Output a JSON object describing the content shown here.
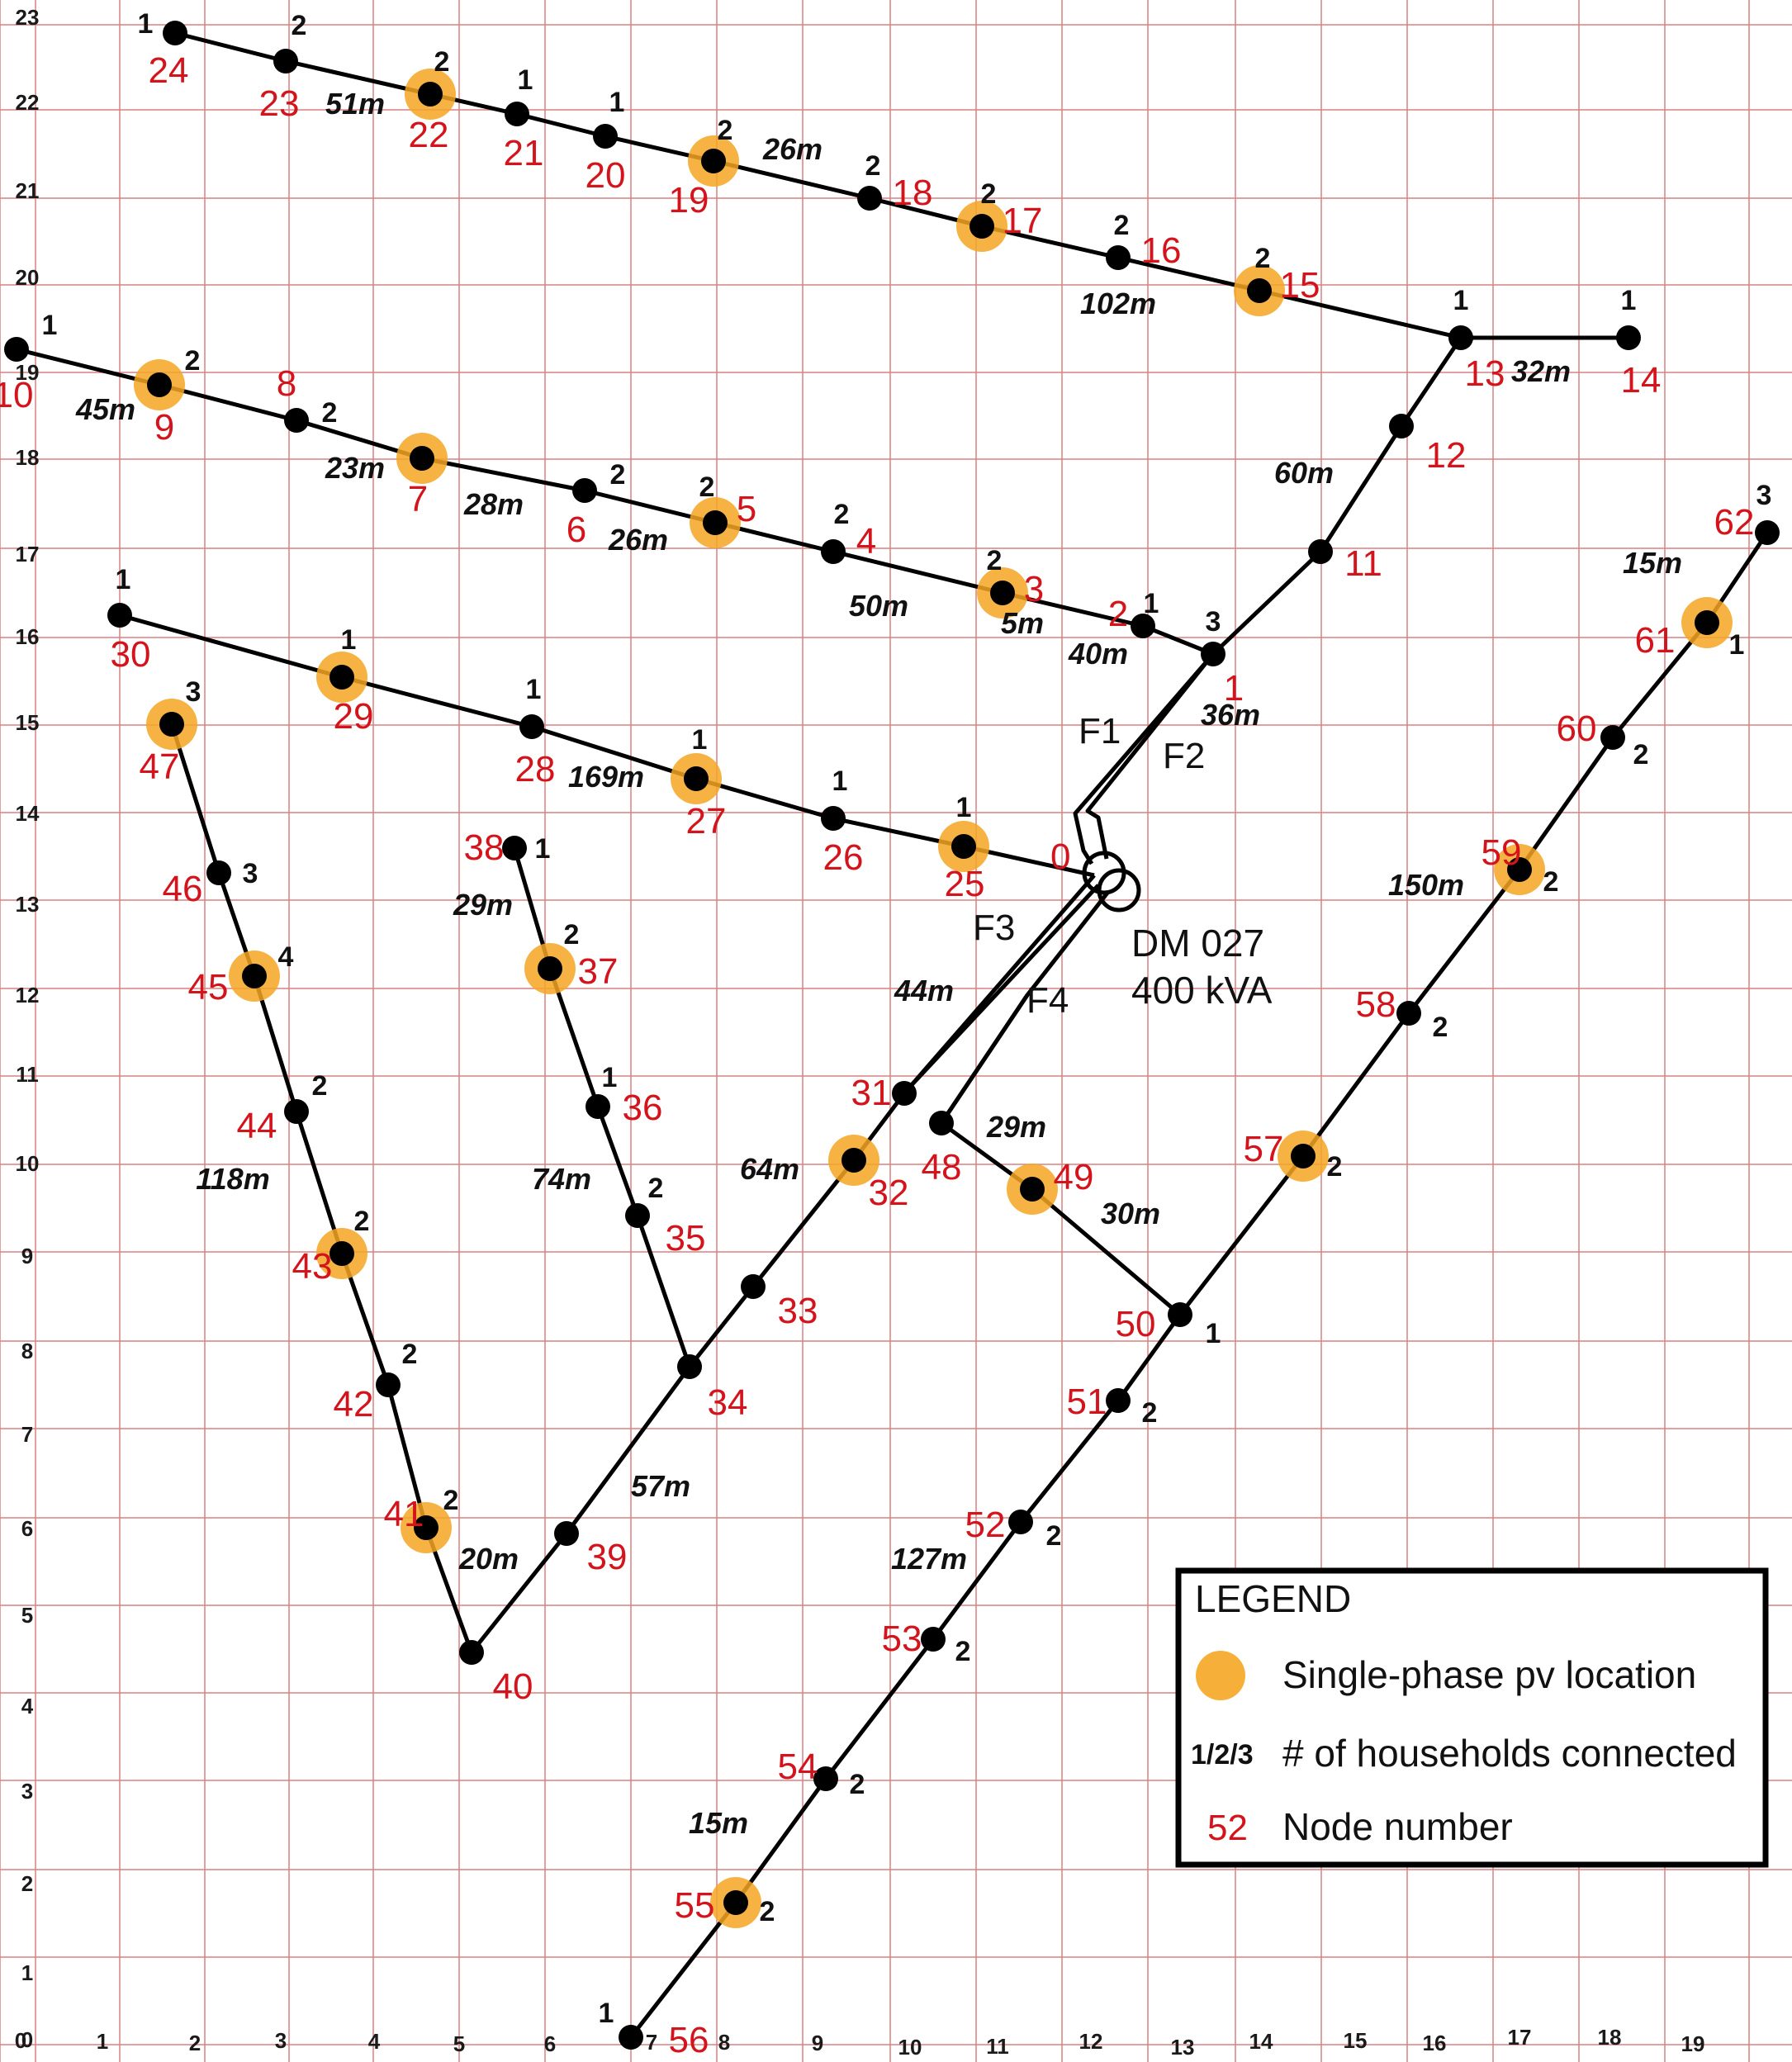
{
  "axes": {
    "x_ticks": [
      "0",
      "1",
      "2",
      "3",
      "4",
      "5",
      "6",
      "7",
      "8",
      "9",
      "10",
      "11",
      "12",
      "13",
      "14",
      "15",
      "16",
      "17",
      "18",
      "19"
    ],
    "y_ticks": [
      "23",
      "22",
      "21",
      "20",
      "19",
      "18",
      "17",
      "16",
      "15",
      "14",
      "13",
      "12",
      "11",
      "10",
      "9",
      "8",
      "7",
      "6",
      "5",
      "4",
      "3",
      "2",
      "1",
      "0"
    ]
  },
  "colors": {
    "grid": "#d98080",
    "line": "#000000",
    "node": "#000000",
    "pv_halo": "#f5a623",
    "node_number": "#d4141c"
  },
  "nodes": [
    {
      "id": "1",
      "hh": "3",
      "pv": false
    },
    {
      "id": "2",
      "hh": "1",
      "pv": false
    },
    {
      "id": "3",
      "hh": "2",
      "pv": true
    },
    {
      "id": "4",
      "hh": "2",
      "pv": false
    },
    {
      "id": "5",
      "hh": "2",
      "pv": true
    },
    {
      "id": "6",
      "hh": "2",
      "pv": false
    },
    {
      "id": "7",
      "hh": "",
      "pv": true
    },
    {
      "id": "8",
      "hh": "2",
      "pv": false
    },
    {
      "id": "9",
      "hh": "2",
      "pv": true
    },
    {
      "id": "10",
      "hh": "1",
      "pv": false
    },
    {
      "id": "11",
      "hh": "",
      "pv": false
    },
    {
      "id": "12",
      "hh": "",
      "pv": false
    },
    {
      "id": "13",
      "hh": "1",
      "pv": false
    },
    {
      "id": "14",
      "hh": "1",
      "pv": false
    },
    {
      "id": "15",
      "hh": "2",
      "pv": true
    },
    {
      "id": "16",
      "hh": "2",
      "pv": false
    },
    {
      "id": "17",
      "hh": "2",
      "pv": true
    },
    {
      "id": "18",
      "hh": "2",
      "pv": false
    },
    {
      "id": "19",
      "hh": "2",
      "pv": true
    },
    {
      "id": "20",
      "hh": "1",
      "pv": false
    },
    {
      "id": "21",
      "hh": "1",
      "pv": false
    },
    {
      "id": "22",
      "hh": "2",
      "pv": true
    },
    {
      "id": "23",
      "hh": "2",
      "pv": false
    },
    {
      "id": "24",
      "hh": "1",
      "pv": false
    },
    {
      "id": "25",
      "hh": "1",
      "pv": true
    },
    {
      "id": "26",
      "hh": "1",
      "pv": false
    },
    {
      "id": "27",
      "hh": "1",
      "pv": true
    },
    {
      "id": "28",
      "hh": "1",
      "pv": false
    },
    {
      "id": "29",
      "hh": "1",
      "pv": true
    },
    {
      "id": "30",
      "hh": "1",
      "pv": false
    },
    {
      "id": "31",
      "hh": "",
      "pv": false
    },
    {
      "id": "32",
      "hh": "",
      "pv": true
    },
    {
      "id": "33",
      "hh": "",
      "pv": false
    },
    {
      "id": "34",
      "hh": "",
      "pv": false
    },
    {
      "id": "35",
      "hh": "2",
      "pv": false
    },
    {
      "id": "36",
      "hh": "1",
      "pv": false
    },
    {
      "id": "37",
      "hh": "2",
      "pv": true
    },
    {
      "id": "38",
      "hh": "1",
      "pv": false
    },
    {
      "id": "39",
      "hh": "",
      "pv": false
    },
    {
      "id": "40",
      "hh": "",
      "pv": false
    },
    {
      "id": "41",
      "hh": "2",
      "pv": true
    },
    {
      "id": "42",
      "hh": "2",
      "pv": false
    },
    {
      "id": "43",
      "hh": "2",
      "pv": true
    },
    {
      "id": "44",
      "hh": "2",
      "pv": false
    },
    {
      "id": "45",
      "hh": "4",
      "pv": true
    },
    {
      "id": "46",
      "hh": "3",
      "pv": false
    },
    {
      "id": "47",
      "hh": "3",
      "pv": true
    },
    {
      "id": "48",
      "hh": "",
      "pv": false
    },
    {
      "id": "49",
      "hh": "",
      "pv": true
    },
    {
      "id": "50",
      "hh": "1",
      "pv": false
    },
    {
      "id": "51",
      "hh": "2",
      "pv": false
    },
    {
      "id": "52",
      "hh": "2",
      "pv": false
    },
    {
      "id": "53",
      "hh": "2",
      "pv": false
    },
    {
      "id": "54",
      "hh": "2",
      "pv": false
    },
    {
      "id": "55",
      "hh": "2",
      "pv": true
    },
    {
      "id": "56",
      "hh": "1",
      "pv": false
    },
    {
      "id": "57",
      "hh": "2",
      "pv": true
    },
    {
      "id": "58",
      "hh": "2",
      "pv": false
    },
    {
      "id": "59",
      "hh": "2",
      "pv": true
    },
    {
      "id": "60",
      "hh": "2",
      "pv": false
    },
    {
      "id": "61",
      "hh": "1",
      "pv": true
    },
    {
      "id": "62",
      "hh": "3",
      "pv": false
    }
  ],
  "node0_label": "0",
  "lengths": [
    "51m",
    "26m",
    "102m",
    "32m",
    "60m",
    "45m",
    "23m",
    "28m",
    "26m",
    "50m",
    "5m",
    "40m",
    "36m",
    "15m",
    "169m",
    "29m",
    "74m",
    "44m",
    "64m",
    "57m",
    "20m",
    "118m",
    "29m",
    "30m",
    "150m",
    "127m",
    "15m"
  ],
  "feeders": [
    "F1",
    "F2",
    "F3",
    "F4"
  ],
  "transformer": {
    "name": "DM 027",
    "rating": "400 kVA"
  },
  "legend": {
    "title": "LEGEND",
    "pv_label": "Single-phase pv location",
    "hh_symbol": "1/2/3",
    "hh_label": "# of households connected",
    "node_symbol": "52",
    "node_label": "Node number"
  }
}
